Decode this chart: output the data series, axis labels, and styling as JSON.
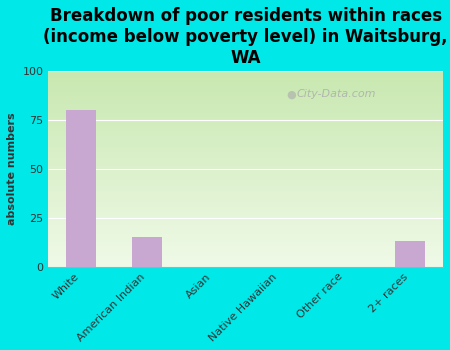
{
  "title": "Breakdown of poor residents within races\n(income below poverty level) in Waitsburg,\nWA",
  "categories": [
    "White",
    "American Indian",
    "Asian",
    "Native Hawaiian",
    "Other race",
    "2+ races"
  ],
  "values": [
    80,
    15,
    0,
    0,
    0,
    13
  ],
  "bar_color": "#c8a8d0",
  "ylabel": "absolute numbers",
  "ylim": [
    0,
    100
  ],
  "yticks": [
    0,
    25,
    50,
    75,
    100
  ],
  "background_color": "#00e8e8",
  "plot_bg_top": "#c8e8b0",
  "plot_bg_bottom": "#f0fae8",
  "watermark": "City-Data.com",
  "title_fontsize": 12,
  "bar_width": 0.45,
  "tick_fontsize": 8,
  "ylabel_fontsize": 8
}
